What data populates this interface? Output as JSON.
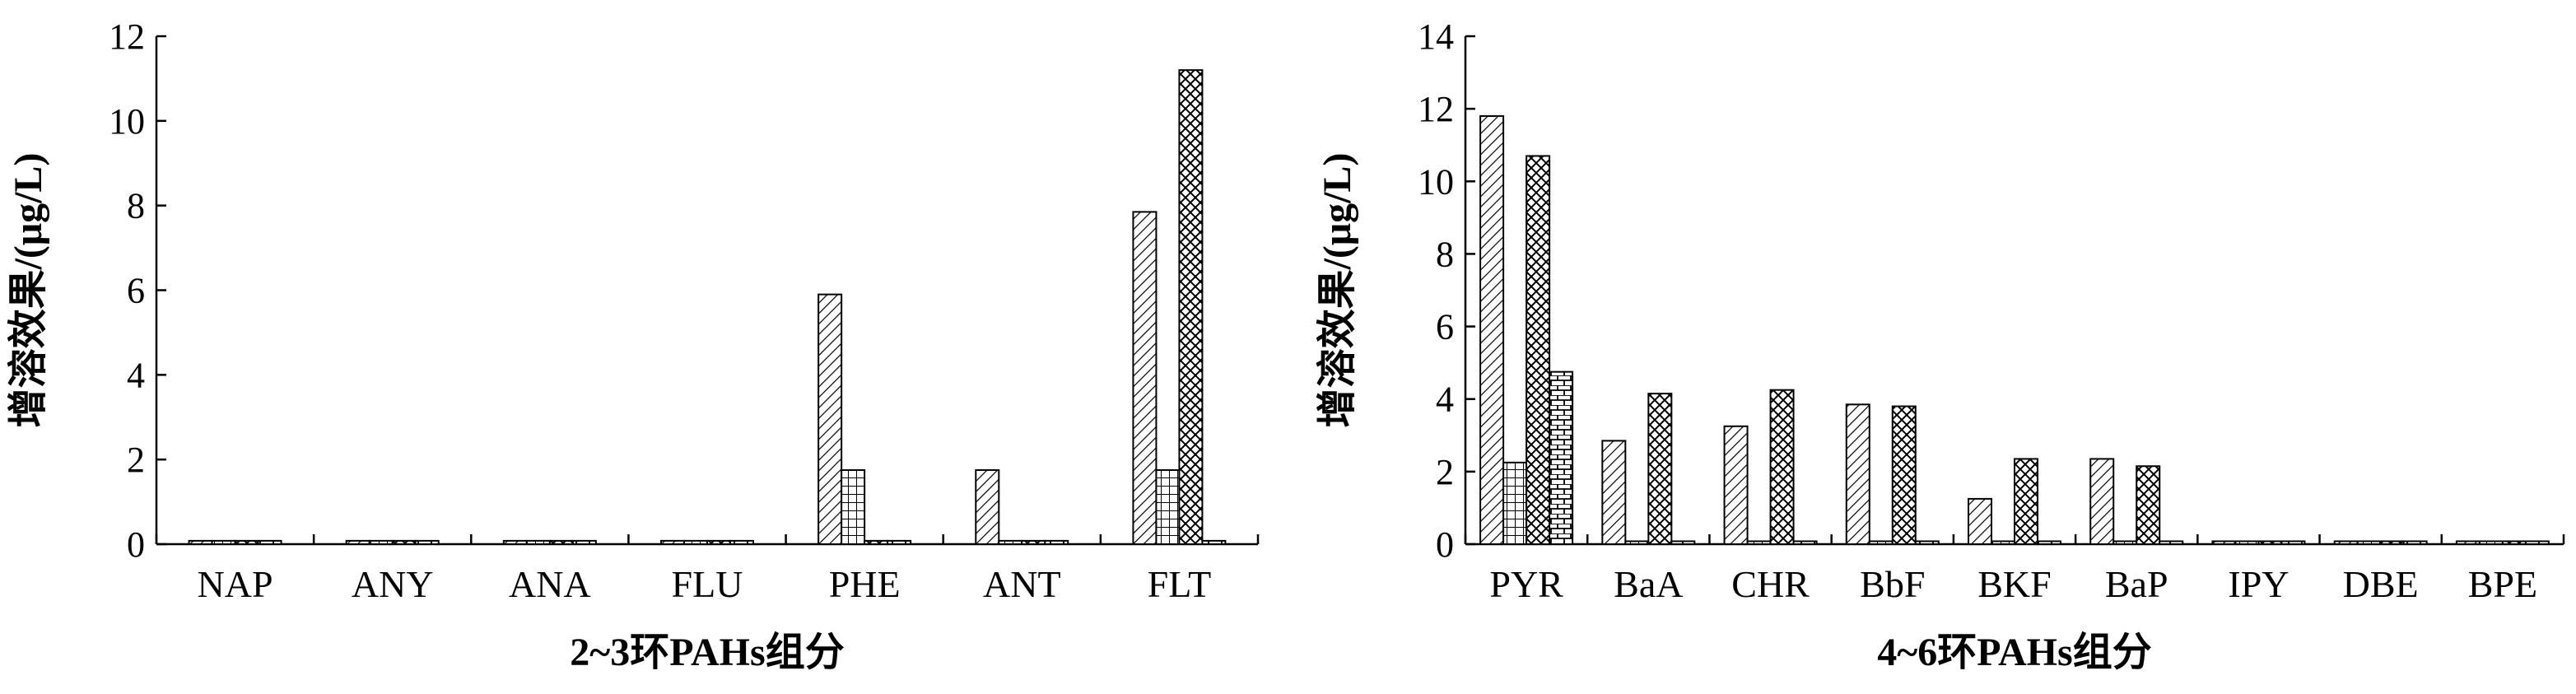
{
  "colors": {
    "axis": "#000000",
    "bar_stroke": "#000000",
    "background": "#ffffff"
  },
  "chart_data": [
    {
      "type": "bar",
      "title": "",
      "xlabel": "2~3环PAHs组分",
      "ylabel": "增溶效果/(μg/L)",
      "ylim": [
        0,
        12
      ],
      "yticks": [
        "0",
        "2",
        "4",
        "6",
        "8",
        "10",
        "12"
      ],
      "categories": [
        "NAP",
        "ANY",
        "ANA",
        "FLU",
        "PHE",
        "ANT",
        "FLT"
      ],
      "grid": false,
      "legend": "none",
      "series": [
        {
          "pattern": "diagonal-hatch",
          "values": [
            0.08,
            0.08,
            0.08,
            0.08,
            5.9,
            1.75,
            7.85
          ]
        },
        {
          "pattern": "grid-hatch",
          "values": [
            0.08,
            0.08,
            0.08,
            0.08,
            1.75,
            0.08,
            1.75
          ]
        },
        {
          "pattern": "cross-hatch",
          "values": [
            0.08,
            0.08,
            0.08,
            0.08,
            0.08,
            0.08,
            11.2
          ]
        },
        {
          "pattern": "brick-hatch",
          "values": [
            0.08,
            0.08,
            0.08,
            0.08,
            0.08,
            0.08,
            0.08
          ]
        }
      ]
    },
    {
      "type": "bar",
      "title": "",
      "xlabel": "4~6环PAHs组分",
      "ylabel": "增溶效果/(μg/L)",
      "ylim": [
        0,
        14
      ],
      "yticks": [
        "0",
        "2",
        "4",
        "6",
        "8",
        "10",
        "12",
        "14"
      ],
      "categories": [
        "PYR",
        "BaA",
        "CHR",
        "BbF",
        "BKF",
        "BaP",
        "IPY",
        "DBE",
        "BPE"
      ],
      "grid": false,
      "legend": "none",
      "series": [
        {
          "pattern": "diagonal-hatch",
          "values": [
            11.8,
            2.85,
            3.25,
            3.85,
            1.25,
            2.35,
            0.08,
            0.08,
            0.08
          ]
        },
        {
          "pattern": "grid-hatch",
          "values": [
            2.25,
            0.08,
            0.08,
            0.08,
            0.08,
            0.08,
            0.08,
            0.08,
            0.08
          ]
        },
        {
          "pattern": "cross-hatch",
          "values": [
            10.7,
            4.15,
            4.25,
            3.8,
            2.35,
            2.15,
            0.08,
            0.08,
            0.08
          ]
        },
        {
          "pattern": "brick-hatch",
          "values": [
            4.75,
            0.08,
            0.08,
            0.08,
            0.08,
            0.08,
            0.08,
            0.08,
            0.08
          ]
        }
      ]
    }
  ]
}
